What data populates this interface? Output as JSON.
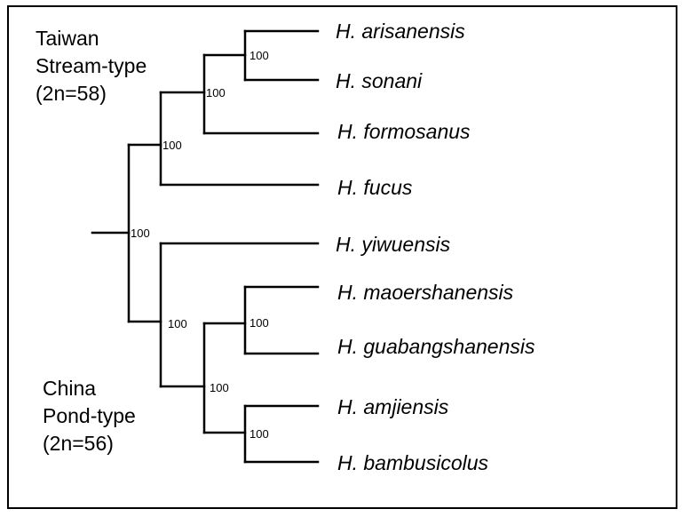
{
  "clades": {
    "taiwan": {
      "line1": "Taiwan",
      "line2": "Stream-type",
      "line3": "(2n=58)"
    },
    "china": {
      "line1": "China",
      "line2": "Pond-type",
      "line3": "(2n=56)"
    }
  },
  "taxa": [
    "H. arisanensis",
    "H. sonani",
    "H. formosanus",
    "H. fucus",
    "H. yiwuensis",
    "H. maoershanensis",
    "H. guabangshanensis",
    "H. amjiensis",
    "H. bambusicolus"
  ],
  "support": {
    "root": "100",
    "taiwan_clade": "100",
    "arisanensis_sonani_formosanus": "100",
    "arisanensis_sonani": "100",
    "china_clade": "100",
    "four_species": "100",
    "maoershanensis_guabangshanensis": "100",
    "amjiensis_bambusicolus": "100"
  }
}
